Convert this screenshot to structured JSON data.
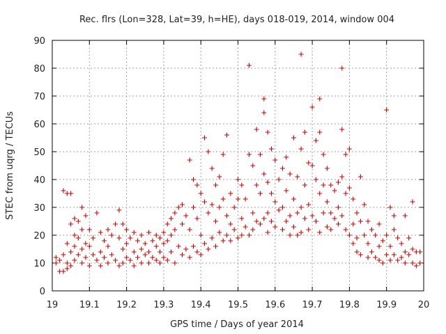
{
  "chart_data": {
    "type": "scatter",
    "title": "Rec. flrs (Lon=328, Lat=39, h=HE), days 018-019, 2014, window 004",
    "xlabel": "GPS time / Days of year 2014",
    "ylabel": "STEC from uqrg / TECUs",
    "xlim": [
      19,
      20
    ],
    "ylim": [
      0,
      90
    ],
    "x_ticks": [
      19,
      19.1,
      19.2,
      19.3,
      19.4,
      19.5,
      19.6,
      19.7,
      19.8,
      19.9,
      20
    ],
    "x_tick_labels": [
      "19",
      "19.1",
      "19.2",
      "19.3",
      "19.4",
      "19.5",
      "19.6",
      "19.7",
      "19.8",
      "19.9",
      "20"
    ],
    "y_ticks": [
      0,
      10,
      20,
      30,
      40,
      50,
      60,
      70,
      80,
      90
    ],
    "y_tick_labels": [
      "0",
      "10",
      "20",
      "30",
      "40",
      "50",
      "60",
      "70",
      "80",
      "90"
    ],
    "grid": true,
    "marker": "plus",
    "color": "#cc0000",
    "points": [
      [
        19.01,
        12
      ],
      [
        19.01,
        10
      ],
      [
        19.02,
        7
      ],
      [
        19.02,
        11
      ],
      [
        19.03,
        36
      ],
      [
        19.03,
        13
      ],
      [
        19.03,
        7
      ],
      [
        19.04,
        35
      ],
      [
        19.04,
        17
      ],
      [
        19.04,
        10
      ],
      [
        19.04,
        8
      ],
      [
        19.05,
        24
      ],
      [
        19.05,
        14
      ],
      [
        19.05,
        9
      ],
      [
        19.05,
        35
      ],
      [
        19.06,
        26
      ],
      [
        19.06,
        20
      ],
      [
        19.06,
        16
      ],
      [
        19.06,
        11
      ],
      [
        19.07,
        25
      ],
      [
        19.07,
        19
      ],
      [
        19.07,
        13
      ],
      [
        19.08,
        30
      ],
      [
        19.08,
        22
      ],
      [
        19.08,
        15
      ],
      [
        19.08,
        10
      ],
      [
        19.09,
        27
      ],
      [
        19.09,
        17
      ],
      [
        19.09,
        12
      ],
      [
        19.1,
        22
      ],
      [
        19.1,
        16
      ],
      [
        19.1,
        9
      ],
      [
        19.11,
        19
      ],
      [
        19.11,
        13
      ],
      [
        19.12,
        28
      ],
      [
        19.12,
        11
      ],
      [
        19.13,
        21
      ],
      [
        19.13,
        14
      ],
      [
        19.13,
        9
      ],
      [
        19.14,
        18
      ],
      [
        19.14,
        12
      ],
      [
        19.15,
        22
      ],
      [
        19.15,
        16
      ],
      [
        19.15,
        10
      ],
      [
        19.16,
        20
      ],
      [
        19.16,
        13
      ],
      [
        19.17,
        24
      ],
      [
        19.17,
        11
      ],
      [
        19.18,
        29
      ],
      [
        19.18,
        19
      ],
      [
        19.18,
        9
      ],
      [
        19.19,
        24
      ],
      [
        19.19,
        15
      ],
      [
        19.19,
        10
      ],
      [
        19.2,
        22
      ],
      [
        19.2,
        17
      ],
      [
        19.2,
        12
      ],
      [
        19.21,
        19
      ],
      [
        19.21,
        11
      ],
      [
        19.22,
        21
      ],
      [
        19.22,
        14
      ],
      [
        19.22,
        9
      ],
      [
        19.23,
        18
      ],
      [
        19.23,
        12
      ],
      [
        19.24,
        20
      ],
      [
        19.24,
        15
      ],
      [
        19.24,
        10
      ],
      [
        19.25,
        17
      ],
      [
        19.25,
        13
      ],
      [
        19.26,
        21
      ],
      [
        19.26,
        14
      ],
      [
        19.26,
        10
      ],
      [
        19.27,
        18
      ],
      [
        19.27,
        12
      ],
      [
        19.28,
        20
      ],
      [
        19.28,
        16
      ],
      [
        19.28,
        11
      ],
      [
        19.29,
        19
      ],
      [
        19.29,
        14
      ],
      [
        19.29,
        10
      ],
      [
        19.3,
        21
      ],
      [
        19.3,
        17
      ],
      [
        19.3,
        12
      ],
      [
        19.31,
        24
      ],
      [
        19.31,
        18
      ],
      [
        19.31,
        11
      ],
      [
        19.32,
        26
      ],
      [
        19.32,
        20
      ],
      [
        19.32,
        14
      ],
      [
        19.33,
        28
      ],
      [
        19.33,
        22
      ],
      [
        19.33,
        10
      ],
      [
        19.34,
        30
      ],
      [
        19.34,
        16
      ],
      [
        19.35,
        31
      ],
      [
        19.35,
        24
      ],
      [
        19.35,
        13
      ],
      [
        19.36,
        27
      ],
      [
        19.36,
        15
      ],
      [
        19.37,
        47
      ],
      [
        19.37,
        22
      ],
      [
        19.37,
        12
      ],
      [
        19.38,
        40
      ],
      [
        19.38,
        30
      ],
      [
        19.38,
        16
      ],
      [
        19.39,
        38
      ],
      [
        19.39,
        26
      ],
      [
        19.39,
        14
      ],
      [
        19.4,
        35
      ],
      [
        19.4,
        20
      ],
      [
        19.4,
        13
      ],
      [
        19.41,
        55
      ],
      [
        19.41,
        32
      ],
      [
        19.41,
        17
      ],
      [
        19.42,
        50
      ],
      [
        19.42,
        28
      ],
      [
        19.42,
        15
      ],
      [
        19.43,
        44
      ],
      [
        19.43,
        31
      ],
      [
        19.43,
        19
      ],
      [
        19.44,
        38
      ],
      [
        19.44,
        25
      ],
      [
        19.44,
        16
      ],
      [
        19.45,
        41
      ],
      [
        19.45,
        30
      ],
      [
        19.45,
        21
      ],
      [
        19.46,
        49
      ],
      [
        19.46,
        33
      ],
      [
        19.46,
        18
      ],
      [
        19.47,
        56
      ],
      [
        19.47,
        27
      ],
      [
        19.47,
        20
      ],
      [
        19.48,
        35
      ],
      [
        19.48,
        24
      ],
      [
        19.48,
        18
      ],
      [
        19.49,
        30
      ],
      [
        19.49,
        22
      ],
      [
        19.5,
        40
      ],
      [
        19.5,
        33
      ],
      [
        19.5,
        19
      ],
      [
        19.51,
        38
      ],
      [
        19.51,
        26
      ],
      [
        19.51,
        20
      ],
      [
        19.52,
        33
      ],
      [
        19.52,
        23
      ],
      [
        19.53,
        81
      ],
      [
        19.53,
        49
      ],
      [
        19.53,
        20
      ],
      [
        19.54,
        45
      ],
      [
        19.54,
        28
      ],
      [
        19.54,
        22
      ],
      [
        19.55,
        58
      ],
      [
        19.55,
        38
      ],
      [
        19.55,
        25
      ],
      [
        19.56,
        49
      ],
      [
        19.56,
        35
      ],
      [
        19.56,
        24
      ],
      [
        19.57,
        69
      ],
      [
        19.57,
        64
      ],
      [
        19.57,
        42
      ],
      [
        19.57,
        26
      ],
      [
        19.58,
        57
      ],
      [
        19.58,
        39
      ],
      [
        19.58,
        28
      ],
      [
        19.58,
        21
      ],
      [
        19.59,
        51
      ],
      [
        19.59,
        35
      ],
      [
        19.59,
        25
      ],
      [
        19.6,
        47
      ],
      [
        19.6,
        32
      ],
      [
        19.6,
        23
      ],
      [
        19.61,
        40
      ],
      [
        19.61,
        29
      ],
      [
        19.62,
        44
      ],
      [
        19.62,
        30
      ],
      [
        19.62,
        22
      ],
      [
        19.63,
        48
      ],
      [
        19.63,
        36
      ],
      [
        19.63,
        25
      ],
      [
        19.64,
        42
      ],
      [
        19.64,
        27
      ],
      [
        19.64,
        20
      ],
      [
        19.65,
        55
      ],
      [
        19.65,
        33
      ],
      [
        19.65,
        23
      ],
      [
        19.66,
        41
      ],
      [
        19.66,
        28
      ],
      [
        19.66,
        20
      ],
      [
        19.67,
        85
      ],
      [
        19.67,
        51
      ],
      [
        19.67,
        30
      ],
      [
        19.67,
        21
      ],
      [
        19.68,
        57
      ],
      [
        19.68,
        38
      ],
      [
        19.68,
        26
      ],
      [
        19.69,
        46
      ],
      [
        19.69,
        31
      ],
      [
        19.69,
        22
      ],
      [
        19.7,
        66
      ],
      [
        19.7,
        45
      ],
      [
        19.7,
        27
      ],
      [
        19.71,
        54
      ],
      [
        19.71,
        40
      ],
      [
        19.71,
        25
      ],
      [
        19.72,
        69
      ],
      [
        19.72,
        57
      ],
      [
        19.72,
        35
      ],
      [
        19.72,
        21
      ],
      [
        19.73,
        49
      ],
      [
        19.73,
        38
      ],
      [
        19.73,
        28
      ],
      [
        19.74,
        44
      ],
      [
        19.74,
        32
      ],
      [
        19.74,
        23
      ],
      [
        19.75,
        38
      ],
      [
        19.75,
        28
      ],
      [
        19.75,
        22
      ],
      [
        19.76,
        36
      ],
      [
        19.76,
        26
      ],
      [
        19.77,
        39
      ],
      [
        19.77,
        30
      ],
      [
        19.77,
        24
      ],
      [
        19.78,
        80
      ],
      [
        19.78,
        58
      ],
      [
        19.78,
        41
      ],
      [
        19.78,
        27
      ],
      [
        19.79,
        49
      ],
      [
        19.79,
        35
      ],
      [
        19.79,
        22
      ],
      [
        19.8,
        51
      ],
      [
        19.8,
        37
      ],
      [
        19.8,
        20
      ],
      [
        19.81,
        33
      ],
      [
        19.81,
        24
      ],
      [
        19.81,
        17
      ],
      [
        19.82,
        28
      ],
      [
        19.82,
        19
      ],
      [
        19.82,
        14
      ],
      [
        19.83,
        41
      ],
      [
        19.83,
        25
      ],
      [
        19.83,
        13
      ],
      [
        19.84,
        31
      ],
      [
        19.84,
        20
      ],
      [
        19.85,
        25
      ],
      [
        19.85,
        17
      ],
      [
        19.85,
        12
      ],
      [
        19.86,
        22
      ],
      [
        19.86,
        14
      ],
      [
        19.87,
        20
      ],
      [
        19.87,
        12
      ],
      [
        19.88,
        24
      ],
      [
        19.88,
        16
      ],
      [
        19.88,
        11
      ],
      [
        19.89,
        18
      ],
      [
        19.89,
        10
      ],
      [
        19.9,
        65
      ],
      [
        19.9,
        20
      ],
      [
        19.9,
        13
      ],
      [
        19.91,
        30
      ],
      [
        19.91,
        16
      ],
      [
        19.91,
        11
      ],
      [
        19.92,
        27
      ],
      [
        19.92,
        22
      ],
      [
        19.92,
        13
      ],
      [
        19.93,
        19
      ],
      [
        19.93,
        11
      ],
      [
        19.94,
        17
      ],
      [
        19.94,
        12
      ],
      [
        19.95,
        27
      ],
      [
        19.95,
        14
      ],
      [
        19.95,
        10
      ],
      [
        19.96,
        19
      ],
      [
        19.96,
        13
      ],
      [
        19.97,
        32
      ],
      [
        19.97,
        15
      ],
      [
        19.97,
        10
      ],
      [
        19.98,
        14
      ],
      [
        19.98,
        9
      ],
      [
        19.99,
        14
      ],
      [
        19.99,
        10
      ]
    ]
  }
}
